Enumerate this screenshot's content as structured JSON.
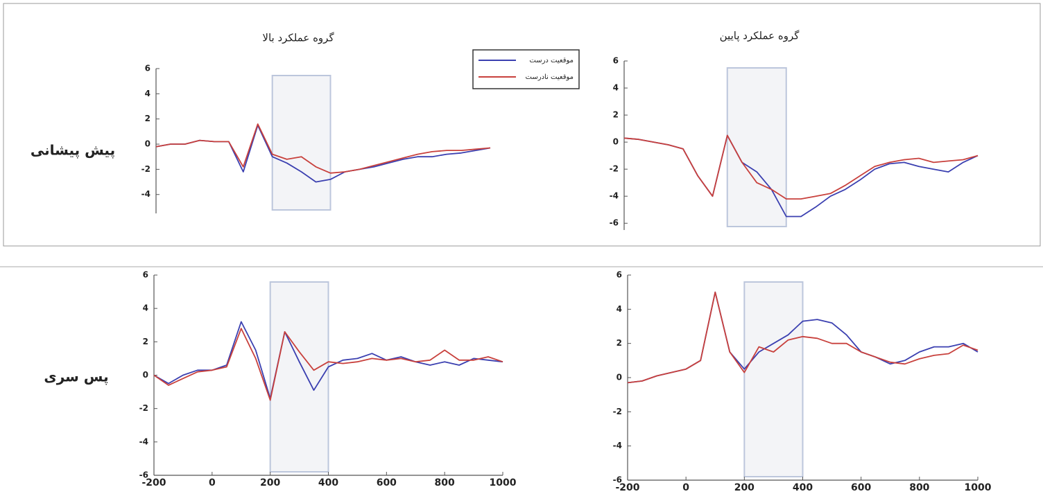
{
  "chart_data": [
    {
      "type": "line",
      "title": "گروه عملکرد بالا",
      "row_label": "پیش پیشانی",
      "x": [
        -200,
        -150,
        -100,
        -50,
        0,
        50,
        100,
        150,
        200,
        250,
        300,
        350,
        400,
        450,
        500,
        550,
        600,
        650,
        700,
        750,
        800,
        850,
        900,
        950
      ],
      "series": [
        {
          "name": "موقعیت درست",
          "color": "#3a3fb0",
          "values": [
            -0.2,
            0,
            0,
            0.3,
            0.2,
            0.2,
            -2.2,
            1.5,
            -1,
            -1.5,
            -2.2,
            -3,
            -2.8,
            -2.2,
            -2,
            -1.8,
            -1.5,
            -1.2,
            -1,
            -1,
            -0.8,
            -0.7,
            -0.5,
            -0.3
          ]
        },
        {
          "name": "موقعیت نادرست",
          "color": "#c8403c",
          "values": [
            -0.2,
            0,
            0,
            0.3,
            0.2,
            0.2,
            -1.8,
            1.6,
            -0.8,
            -1.2,
            -1,
            -1.8,
            -2.3,
            -2.2,
            -2,
            -1.7,
            -1.4,
            -1.1,
            -0.8,
            -0.6,
            -0.5,
            -0.5,
            -0.4,
            -0.3
          ]
        }
      ],
      "xlim": [
        -200,
        1000
      ],
      "ylim": [
        -5.5,
        6
      ],
      "yticks": [
        -4,
        -2,
        0,
        2,
        4,
        6
      ],
      "shaded_range": [
        200,
        400
      ]
    },
    {
      "type": "line",
      "title": "گروه عملکرد پایین",
      "legend": true,
      "x": [
        -200,
        -150,
        -100,
        -50,
        0,
        50,
        100,
        150,
        200,
        250,
        300,
        350,
        400,
        450,
        500,
        550,
        600,
        650,
        700,
        750,
        800,
        850,
        900,
        950,
        1000
      ],
      "series": [
        {
          "name": "موقعیت درست",
          "color": "#3a3fb0",
          "values": [
            0.3,
            0.2,
            0,
            -0.2,
            -0.5,
            -2.5,
            -4,
            0.5,
            -1.5,
            -2.2,
            -3.5,
            -5.5,
            -5.5,
            -4.8,
            -4,
            -3.5,
            -2.8,
            -2,
            -1.6,
            -1.5,
            -1.8,
            -2,
            -2.2,
            -1.5,
            -1
          ]
        },
        {
          "name": "موقعیت نادرست",
          "color": "#c8403c",
          "values": [
            0.3,
            0.2,
            0,
            -0.2,
            -0.5,
            -2.5,
            -4,
            0.5,
            -1.5,
            -3,
            -3.5,
            -4.2,
            -4.2,
            -4,
            -3.8,
            -3.2,
            -2.5,
            -1.8,
            -1.5,
            -1.3,
            -1.2,
            -1.5,
            -1.4,
            -1.3,
            -1
          ]
        }
      ],
      "xlim": [
        -200,
        1000
      ],
      "ylim": [
        -6.5,
        6
      ],
      "yticks": [
        -6,
        -4,
        -2,
        0,
        2,
        4,
        6
      ],
      "shaded_range": [
        150,
        350
      ]
    },
    {
      "type": "line",
      "row_label": "پس سری",
      "x": [
        -200,
        -150,
        -100,
        -50,
        0,
        50,
        100,
        150,
        200,
        250,
        300,
        350,
        400,
        450,
        500,
        550,
        600,
        650,
        700,
        750,
        800,
        850,
        900,
        950,
        1000
      ],
      "series": [
        {
          "name": "موقعیت درست",
          "color": "#3a3fb0",
          "values": [
            0,
            -0.5,
            0,
            0.3,
            0.3,
            0.6,
            3.2,
            1.5,
            -1.4,
            2.6,
            0.8,
            -0.9,
            0.5,
            0.9,
            1,
            1.3,
            0.9,
            1.1,
            0.8,
            0.6,
            0.8,
            0.6,
            1,
            0.9,
            0.8
          ]
        },
        {
          "name": "موقعیت نادرست",
          "color": "#c8403c",
          "values": [
            0,
            -0.6,
            -0.2,
            0.2,
            0.3,
            0.5,
            2.8,
            1,
            -1.5,
            2.6,
            1.4,
            0.3,
            0.8,
            0.7,
            0.8,
            1,
            0.9,
            1,
            0.8,
            0.9,
            1.5,
            0.9,
            0.9,
            1.1,
            0.8
          ]
        }
      ],
      "xlim": [
        -200,
        1000
      ],
      "ylim": [
        -6,
        6
      ],
      "xticks": [
        -200,
        0,
        200,
        400,
        600,
        800,
        1000
      ],
      "yticks": [
        -6,
        -4,
        -2,
        0,
        2,
        4,
        6
      ],
      "shaded_range": [
        200,
        400
      ]
    },
    {
      "type": "line",
      "x": [
        -200,
        -150,
        -100,
        -50,
        0,
        50,
        100,
        150,
        200,
        250,
        300,
        350,
        400,
        450,
        500,
        550,
        600,
        650,
        700,
        750,
        800,
        850,
        900,
        950,
        1000
      ],
      "series": [
        {
          "name": "موقعیت درست",
          "color": "#3a3fb0",
          "values": [
            -0.3,
            -0.2,
            0.1,
            0.3,
            0.5,
            1,
            5,
            1.5,
            0.5,
            1.5,
            2,
            2.5,
            3.3,
            3.4,
            3.2,
            2.5,
            1.5,
            1.2,
            0.8,
            1,
            1.5,
            1.8,
            1.8,
            2,
            1.5
          ]
        },
        {
          "name": "موقعیت نادرست",
          "color": "#c8403c",
          "values": [
            -0.3,
            -0.2,
            0.1,
            0.3,
            0.5,
            1,
            5,
            1.5,
            0.3,
            1.8,
            1.5,
            2.2,
            2.4,
            2.3,
            2,
            2,
            1.5,
            1.2,
            0.9,
            0.8,
            1.1,
            1.3,
            1.4,
            1.9,
            1.6
          ]
        }
      ],
      "xlim": [
        -200,
        1000
      ],
      "ylim": [
        -6,
        6
      ],
      "xticks": [
        -200,
        0,
        200,
        400,
        600,
        800,
        1000
      ],
      "yticks": [
        -6,
        -4,
        -2,
        0,
        2,
        4,
        6
      ],
      "shaded_range": [
        200,
        400
      ]
    }
  ]
}
